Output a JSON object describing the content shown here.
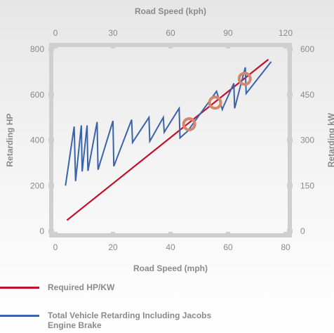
{
  "chart_data": {
    "type": "line",
    "xlabel": "Road Speed (mph)",
    "x2label": "Road Speed (kph)",
    "ylabel": "Retarding HP",
    "y2label": "Retarding kW",
    "xlim": [
      0,
      80
    ],
    "ylim": [
      0,
      800
    ],
    "x2lim": [
      0,
      120
    ],
    "y2lim": [
      0,
      600
    ],
    "x_ticks": [
      "0",
      "20",
      "40",
      "60",
      "80"
    ],
    "x2_ticks": [
      "0",
      "30",
      "60",
      "90",
      "120"
    ],
    "y_ticks": [
      "0",
      "200",
      "400",
      "600",
      "800"
    ],
    "y2_ticks": [
      "0",
      "150",
      "300",
      "450",
      "600"
    ],
    "grid": false,
    "colors": {
      "required": "#c0122e",
      "total": "#3b63a8",
      "marker": "#d4876c",
      "frame": "#cfcfcf"
    },
    "series": [
      {
        "name": "Required HP/KW",
        "x": [
          4,
          74
        ],
        "y": [
          48,
          755
        ]
      },
      {
        "name": "Total Vehicle Retarding Including Jacobs Engine Brake",
        "x": [
          3.5,
          6.5,
          7,
          9,
          9.3,
          11,
          11.3,
          14.5,
          14.8,
          20,
          20.3,
          26.5,
          26.8,
          32.5,
          32.8,
          37.5,
          37.8,
          43,
          43.3,
          46,
          56,
          58,
          58.3,
          62,
          62.3,
          66,
          66.3,
          75
        ],
        "y": [
          200,
          460,
          220,
          465,
          262,
          465,
          265,
          480,
          270,
          485,
          285,
          490,
          390,
          500,
          395,
          500,
          435,
          540,
          410,
          440,
          615,
          535,
          545,
          650,
          540,
          720,
          605,
          745
        ]
      }
    ],
    "markers": [
      {
        "x": 46.5,
        "y": 470
      },
      {
        "x": 55.5,
        "y": 565
      },
      {
        "x": 65.8,
        "y": 670
      }
    ],
    "legend": [
      {
        "label": "Required HP/KW"
      },
      {
        "label": "Total Vehicle Retarding Including Jacobs Engine Brake"
      }
    ]
  }
}
